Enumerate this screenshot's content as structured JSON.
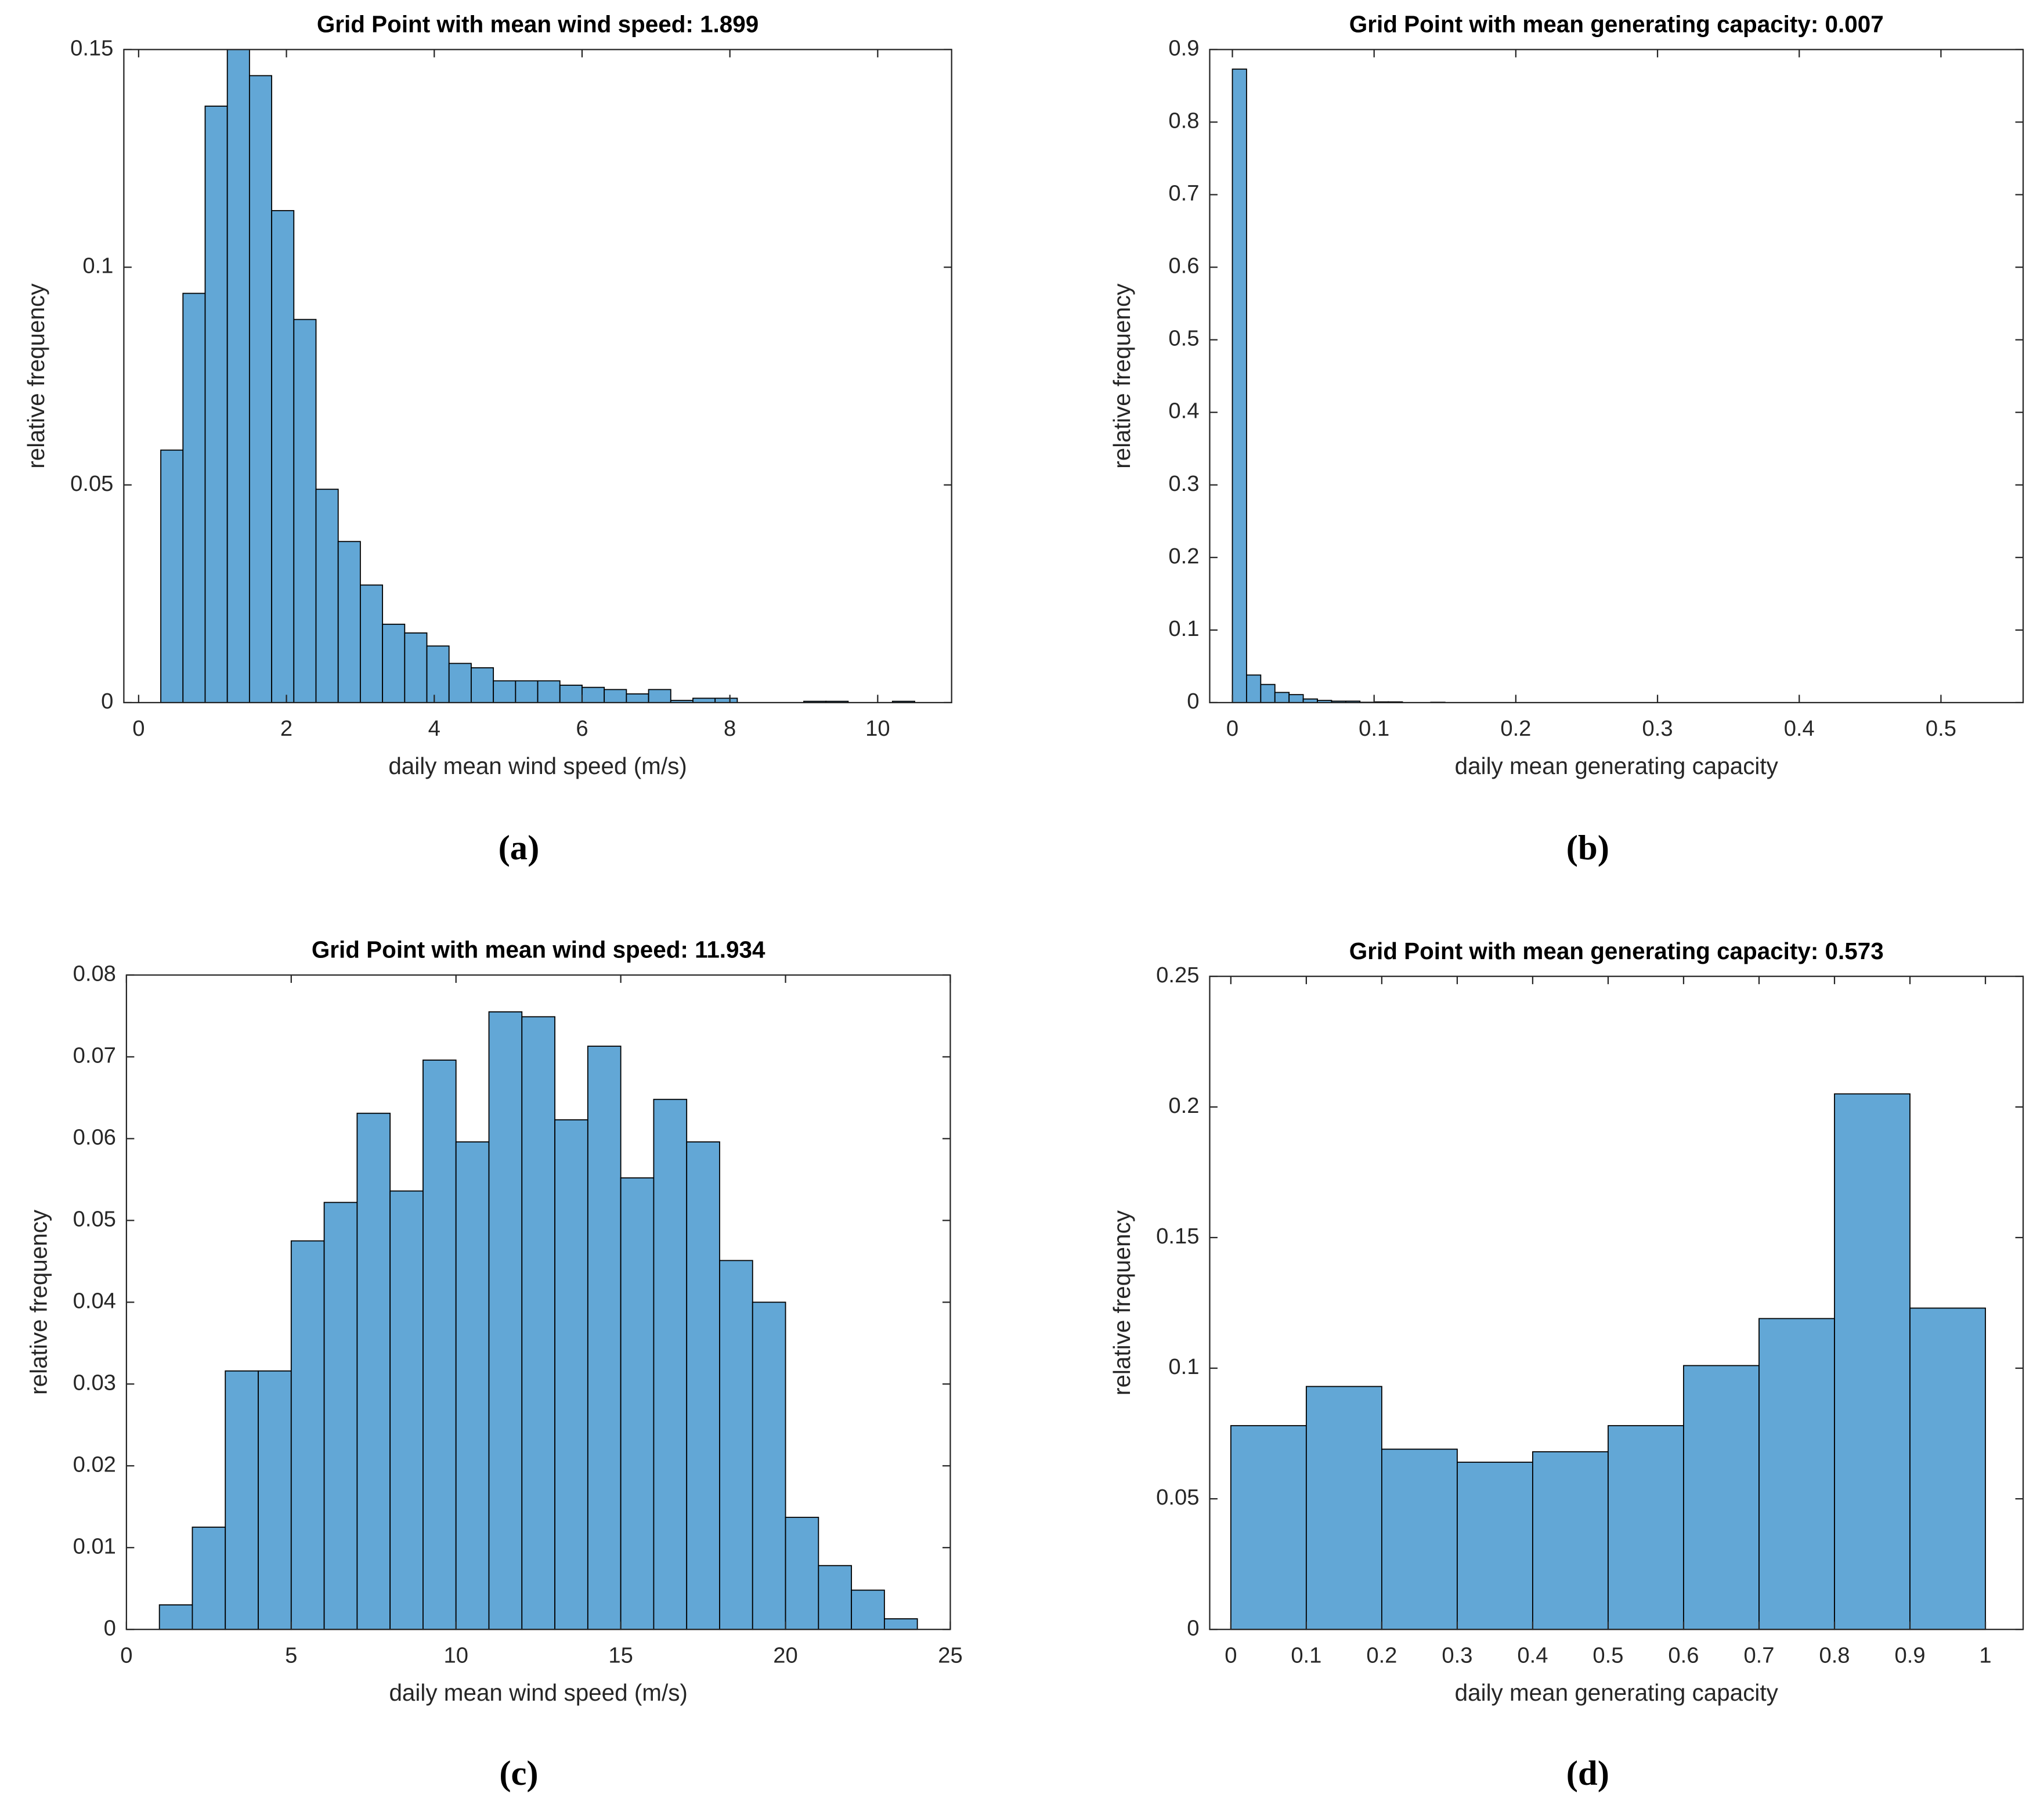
{
  "chart_data": [
    {
      "type": "histogram",
      "title": "Grid Point with mean wind speed: 1.899",
      "xlabel": "daily mean wind speed (m/s)",
      "ylabel": "relative frequency",
      "caption": "(a)",
      "color": "#62a7d6",
      "bins": [
        0.3,
        0.6,
        0.9,
        1.2,
        1.5,
        1.8,
        2.1,
        2.4,
        2.7,
        3.0,
        3.3,
        3.6,
        3.9,
        4.2,
        4.5,
        4.8,
        5.1,
        5.4,
        5.7,
        6.0,
        6.3,
        6.6,
        6.9,
        7.2,
        7.5,
        7.8,
        8.1,
        8.4,
        8.7,
        9.0,
        9.3,
        9.6,
        9.9,
        10.2,
        10.5
      ],
      "values": [
        0.058,
        0.094,
        0.137,
        0.15,
        0.144,
        0.113,
        0.088,
        0.049,
        0.037,
        0.027,
        0.018,
        0.016,
        0.013,
        0.009,
        0.008,
        0.005,
        0.005,
        0.005,
        0.004,
        0.0035,
        0.003,
        0.002,
        0.003,
        0.0005,
        0.001,
        0.001,
        0,
        0,
        0,
        0.0003,
        0.0003,
        0,
        0,
        0.0003
      ],
      "xlim": [
        -0.2,
        11
      ],
      "ylim": [
        0,
        0.15
      ],
      "xticks": [
        0,
        2,
        4,
        6,
        8,
        10
      ],
      "yticks": [
        0,
        0.05,
        0.1,
        0.15
      ]
    },
    {
      "type": "histogram",
      "title": "Grid Point with mean generating capacity: 0.007",
      "xlabel": "daily mean generating capacity",
      "ylabel": "relative frequency",
      "caption": "(b)",
      "color": "#62a7d6",
      "bins": [
        0,
        0.01,
        0.02,
        0.03,
        0.04,
        0.05,
        0.06,
        0.07,
        0.08,
        0.09,
        0.1,
        0.11,
        0.12,
        0.13,
        0.14,
        0.15
      ],
      "values": [
        0.873,
        0.038,
        0.025,
        0.014,
        0.011,
        0.005,
        0.003,
        0.002,
        0.002,
        0.0005,
        0.001,
        0.001,
        0,
        0,
        0.0005
      ],
      "xlim": [
        -0.016,
        0.558
      ],
      "ylim": [
        0,
        0.9
      ],
      "xticks": [
        0,
        0.1,
        0.2,
        0.3,
        0.4,
        0.5
      ],
      "yticks": [
        0,
        0.1,
        0.2,
        0.3,
        0.4,
        0.5,
        0.6,
        0.7,
        0.8,
        0.9
      ]
    },
    {
      "type": "histogram",
      "title": "Grid Point with mean wind speed: 11.934",
      "xlabel": "daily mean wind speed (m/s)",
      "ylabel": "relative frequency",
      "caption": "(c)",
      "color": "#62a7d6",
      "bins": [
        1,
        2,
        3,
        4,
        5,
        6,
        7,
        8,
        9,
        10,
        11,
        12,
        13,
        14,
        15,
        16,
        17,
        18,
        19,
        20,
        21,
        22,
        23,
        24
      ],
      "values": [
        0.003,
        0.0125,
        0.0316,
        0.0316,
        0.0475,
        0.0522,
        0.0631,
        0.0536,
        0.0696,
        0.0596,
        0.0755,
        0.0749,
        0.0623,
        0.0713,
        0.0552,
        0.0648,
        0.0596,
        0.0451,
        0.04,
        0.0137,
        0.0078,
        0.0048,
        0.0013
      ],
      "xlim": [
        0,
        25
      ],
      "ylim": [
        0,
        0.08
      ],
      "xticks": [
        0,
        5,
        10,
        15,
        20,
        25
      ],
      "yticks": [
        0,
        0.01,
        0.02,
        0.03,
        0.04,
        0.05,
        0.06,
        0.07,
        0.08
      ]
    },
    {
      "type": "histogram",
      "title": "Grid Point with mean generating capacity: 0.573",
      "xlabel": "daily mean generating capacity",
      "ylabel": "relative frequency",
      "caption": "(d)",
      "color": "#62a7d6",
      "bins": [
        0,
        0.1,
        0.2,
        0.3,
        0.4,
        0.5,
        0.6,
        0.7,
        0.8,
        0.9,
        1
      ],
      "values": [
        0.078,
        0.093,
        0.069,
        0.064,
        0.068,
        0.078,
        0.101,
        0.119,
        0.205,
        0.123
      ],
      "xlim": [
        -0.028,
        1.05
      ],
      "ylim": [
        0,
        0.25
      ],
      "xticks": [
        0,
        0.1,
        0.2,
        0.3,
        0.4,
        0.5,
        0.6,
        0.7,
        0.8,
        0.9,
        1
      ],
      "yticks": [
        0,
        0.05,
        0.1,
        0.15,
        0.2,
        0.25
      ]
    }
  ]
}
